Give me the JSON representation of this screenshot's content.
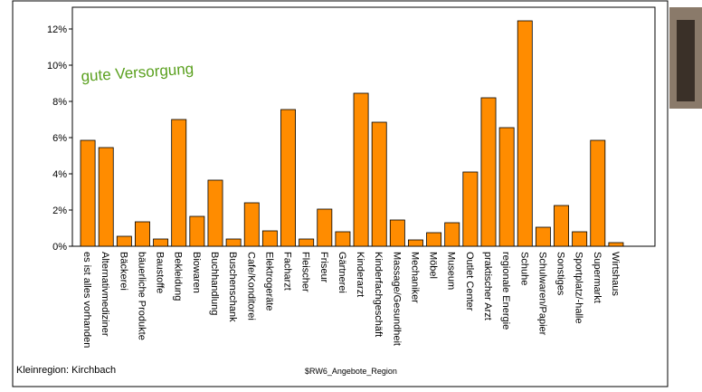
{
  "chart_data": {
    "type": "bar",
    "annotation": "gute Versorgung",
    "x_label": "$RW6_Angebote_Region",
    "footnote": "Kleinregion: Kirchbach",
    "color": "#ff8c00",
    "categories": [
      "es ist alles vorhanden",
      "Alternativmediziner",
      "Bäckerei",
      "bäuerliche Produkte",
      "Baustoffe",
      "Bekleidung",
      "Biowaren",
      "Buchhandlung",
      "Buschenschank",
      "Cafe/Konditorei",
      "Elektrogeräte",
      "Facharzt",
      "Fleischer",
      "Friseur",
      "Gärtnerei",
      "Kinderarzt",
      "Kinderfachgeschäft",
      "Massage/Gesundheit",
      "Mechaniker",
      "Möbel",
      "Museum",
      "Outlet Center",
      "praktischer Arzt",
      "regionale Energie",
      "Schuhe",
      "Schulwaren/Papier",
      "Sonstiges",
      "Sportplatz/-halle",
      "Supermarkt",
      "Wirtshaus"
    ],
    "values": [
      5.85,
      5.45,
      0.55,
      1.35,
      0.4,
      7.0,
      1.65,
      3.65,
      0.4,
      2.4,
      0.85,
      7.55,
      0.4,
      2.05,
      0.8,
      8.45,
      6.85,
      1.45,
      0.35,
      0.75,
      1.3,
      4.1,
      8.2,
      6.55,
      12.45,
      1.05,
      2.25,
      0.8,
      5.85,
      0.2
    ],
    "ylim": [
      0,
      13.2
    ],
    "yticks": [
      {
        "value": 0,
        "label": "0%"
      },
      {
        "value": 2,
        "label": "2%"
      },
      {
        "value": 4,
        "label": "4%"
      },
      {
        "value": 6,
        "label": "6%"
      },
      {
        "value": 8,
        "label": "8%"
      },
      {
        "value": 10,
        "label": "10%"
      },
      {
        "value": 12,
        "label": "12%"
      }
    ],
    "grid": false
  }
}
